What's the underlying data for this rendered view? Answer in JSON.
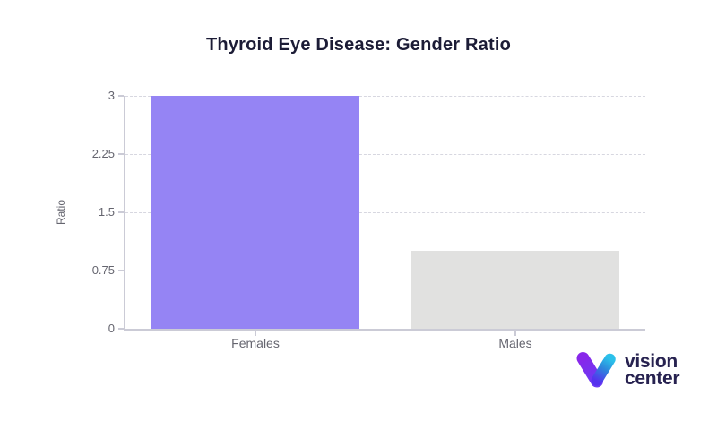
{
  "chart_data": {
    "type": "bar",
    "title": "Thyroid Eye Disease: Gender Ratio",
    "categories": [
      "Females",
      "Males"
    ],
    "values": [
      3,
      1
    ],
    "xlabel": "",
    "ylabel": "Ratio",
    "ylim": [
      0,
      3
    ],
    "yticks": [
      0,
      0.75,
      1.5,
      2.25,
      3
    ],
    "ytick_labels": [
      "0",
      "0.75",
      "1.5",
      "2.25",
      "3"
    ],
    "bar_colors": [
      "#9584F4",
      "#E1E1E0"
    ],
    "grid": "horizontal-dashed",
    "legend": "none",
    "colors": {
      "grid": "#D7D7E0",
      "axis": "#CBCBD6",
      "tick_text": "#65656F",
      "title_text": "#1C1C36"
    }
  },
  "logo": {
    "line1": "vision",
    "line2": "center",
    "colors": {
      "violet": "#8827EA",
      "indigo": "#6A3BF3",
      "indigo_deep": "#5532EE",
      "blue": "#2E86DC",
      "cyan": "#2BC0EA",
      "text": "#272250"
    }
  }
}
